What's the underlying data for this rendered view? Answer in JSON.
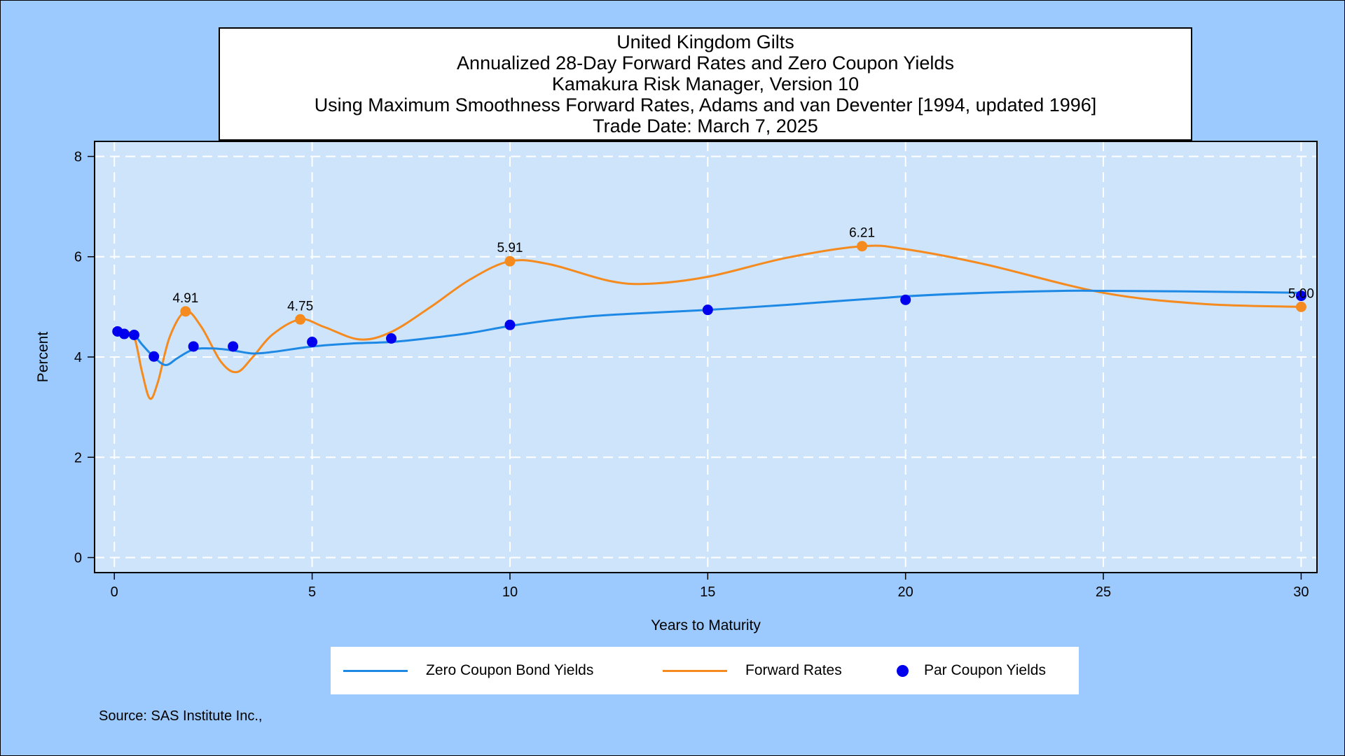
{
  "title_lines": [
    "United Kingdom Gilts",
    "Annualized 28-Day Forward Rates and Zero Coupon Yields",
    "Kamakura Risk Manager, Version 10",
    "Using Maximum Smoothness Forward Rates, Adams and van Deventer [1994, updated 1996]",
    "Trade Date: March 7, 2025"
  ],
  "source": "Source: SAS Institute Inc.,",
  "colors": {
    "background": "#9ccaff",
    "plot_area": "#cde4fb",
    "zero_coupon": "#1e88e5",
    "forward": "#f58a1f",
    "par": "#0000ee"
  },
  "chart_data": {
    "type": "line",
    "xlabel": "Years to Maturity",
    "ylabel": "Percent",
    "xlim": [
      -0.5,
      30.4
    ],
    "ylim": [
      -0.3,
      8.3
    ],
    "x_ticks": [
      0,
      5,
      10,
      15,
      20,
      25,
      30
    ],
    "y_ticks": [
      0,
      2,
      4,
      6,
      8
    ],
    "grid": true,
    "legend_position": "bottom",
    "series": [
      {
        "name": "Zero Coupon Bond Yields",
        "kind": "line",
        "points": [
          [
            0,
            4.5
          ],
          [
            0.25,
            4.47
          ],
          [
            0.5,
            4.44
          ],
          [
            0.7,
            4.25
          ],
          [
            1,
            4.0
          ],
          [
            1.3,
            3.84
          ],
          [
            1.6,
            3.98
          ],
          [
            2,
            4.15
          ],
          [
            2.5,
            4.17
          ],
          [
            3,
            4.13
          ],
          [
            3.5,
            4.07
          ],
          [
            4,
            4.1
          ],
          [
            5,
            4.21
          ],
          [
            6,
            4.27
          ],
          [
            7,
            4.3
          ],
          [
            8,
            4.38
          ],
          [
            9,
            4.48
          ],
          [
            10,
            4.62
          ],
          [
            11,
            4.73
          ],
          [
            12,
            4.81
          ],
          [
            13,
            4.86
          ],
          [
            15,
            4.94
          ],
          [
            17,
            5.04
          ],
          [
            20,
            5.21
          ],
          [
            22,
            5.28
          ],
          [
            24,
            5.32
          ],
          [
            25,
            5.32
          ],
          [
            27,
            5.31
          ],
          [
            30,
            5.28
          ]
        ]
      },
      {
        "name": "Forward Rates",
        "kind": "line",
        "points": [
          [
            0.25,
            4.5
          ],
          [
            0.5,
            4.4
          ],
          [
            0.7,
            3.7
          ],
          [
            0.9,
            3.17
          ],
          [
            1.1,
            3.5
          ],
          [
            1.4,
            4.4
          ],
          [
            1.8,
            4.91
          ],
          [
            2.2,
            4.6
          ],
          [
            2.7,
            3.9
          ],
          [
            3.1,
            3.7
          ],
          [
            3.5,
            4.0
          ],
          [
            4,
            4.45
          ],
          [
            4.7,
            4.75
          ],
          [
            5.3,
            4.6
          ],
          [
            6.2,
            4.35
          ],
          [
            7,
            4.5
          ],
          [
            8,
            5.0
          ],
          [
            9,
            5.55
          ],
          [
            10,
            5.91
          ],
          [
            11,
            5.85
          ],
          [
            12.5,
            5.52
          ],
          [
            13.5,
            5.46
          ],
          [
            15,
            5.6
          ],
          [
            17,
            5.98
          ],
          [
            18.9,
            6.21
          ],
          [
            20,
            6.15
          ],
          [
            22,
            5.85
          ],
          [
            25,
            5.28
          ],
          [
            27.5,
            5.06
          ],
          [
            30,
            5.0
          ]
        ]
      },
      {
        "name": "Par Coupon Yields",
        "kind": "scatter",
        "points": [
          [
            0.08,
            4.51
          ],
          [
            0.25,
            4.46
          ],
          [
            0.5,
            4.44
          ],
          [
            1,
            4.01
          ],
          [
            2,
            4.21
          ],
          [
            3,
            4.21
          ],
          [
            5,
            4.3
          ],
          [
            7,
            4.37
          ],
          [
            10,
            4.64
          ],
          [
            15,
            4.94
          ],
          [
            20,
            5.14
          ],
          [
            30,
            5.22
          ]
        ]
      }
    ],
    "annotations": [
      {
        "series": "Forward Rates",
        "x": 1.8,
        "y": 4.91,
        "label": "4.91"
      },
      {
        "series": "Forward Rates",
        "x": 4.7,
        "y": 4.75,
        "label": "4.75"
      },
      {
        "series": "Forward Rates",
        "x": 10,
        "y": 5.91,
        "label": "5.91"
      },
      {
        "series": "Forward Rates",
        "x": 18.9,
        "y": 6.21,
        "label": "6.21"
      },
      {
        "series": "Forward Rates",
        "x": 30,
        "y": 5.0,
        "label": "5.00"
      }
    ]
  }
}
